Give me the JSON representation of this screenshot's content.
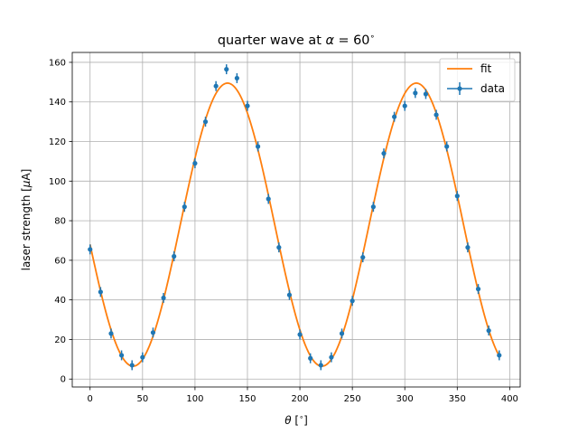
{
  "chart_data": {
    "type": "scatter",
    "title_prefix": "quarter wave at ",
    "title_alpha": "α",
    "title_suffix": " = 60",
    "title_degree": "∘",
    "xlabel_theta": "θ",
    "xlabel_unit": " [",
    "xlabel_degree": "∘",
    "xlabel_close": "]",
    "ylabel_text": "laser strength [",
    "ylabel_mu": "μ",
    "ylabel_unit": "A]",
    "xlim": [
      -17,
      410
    ],
    "ylim": [
      -4,
      165
    ],
    "xticks": [
      0,
      50,
      100,
      150,
      200,
      250,
      300,
      350,
      400
    ],
    "yticks": [
      0,
      20,
      40,
      60,
      80,
      100,
      120,
      140,
      160
    ],
    "grid": true,
    "legend_position": "top-right",
    "colors": {
      "fit": "#ff7f0e",
      "data": "#1f77b4"
    },
    "series": [
      {
        "name": "fit",
        "kind": "line",
        "model": "A*cos^2(theta - phi) + C",
        "amplitude": 143,
        "offset": 6.5,
        "phase_deg": 131
      },
      {
        "name": "data",
        "kind": "errorbar",
        "x": [
          0,
          10,
          20,
          30,
          40,
          50,
          60,
          70,
          80,
          90,
          100,
          110,
          120,
          130,
          140,
          150,
          160,
          170,
          180,
          190,
          200,
          210,
          220,
          230,
          240,
          250,
          260,
          270,
          280,
          290,
          300,
          310,
          320,
          330,
          340,
          350,
          360,
          370,
          380,
          390
        ],
        "y": [
          65.5,
          44,
          23,
          12,
          7,
          11,
          23.5,
          41,
          62,
          87,
          109,
          130,
          148,
          156.5,
          152,
          138,
          117.5,
          91,
          66.5,
          42.5,
          22.5,
          10.5,
          7,
          11,
          23,
          39.5,
          61.5,
          87,
          114,
          132.5,
          138,
          144.5,
          144,
          133.5,
          117.5,
          92.5,
          66.5,
          45.5,
          24.5,
          12
        ],
        "yerr": 2.5
      }
    ]
  }
}
